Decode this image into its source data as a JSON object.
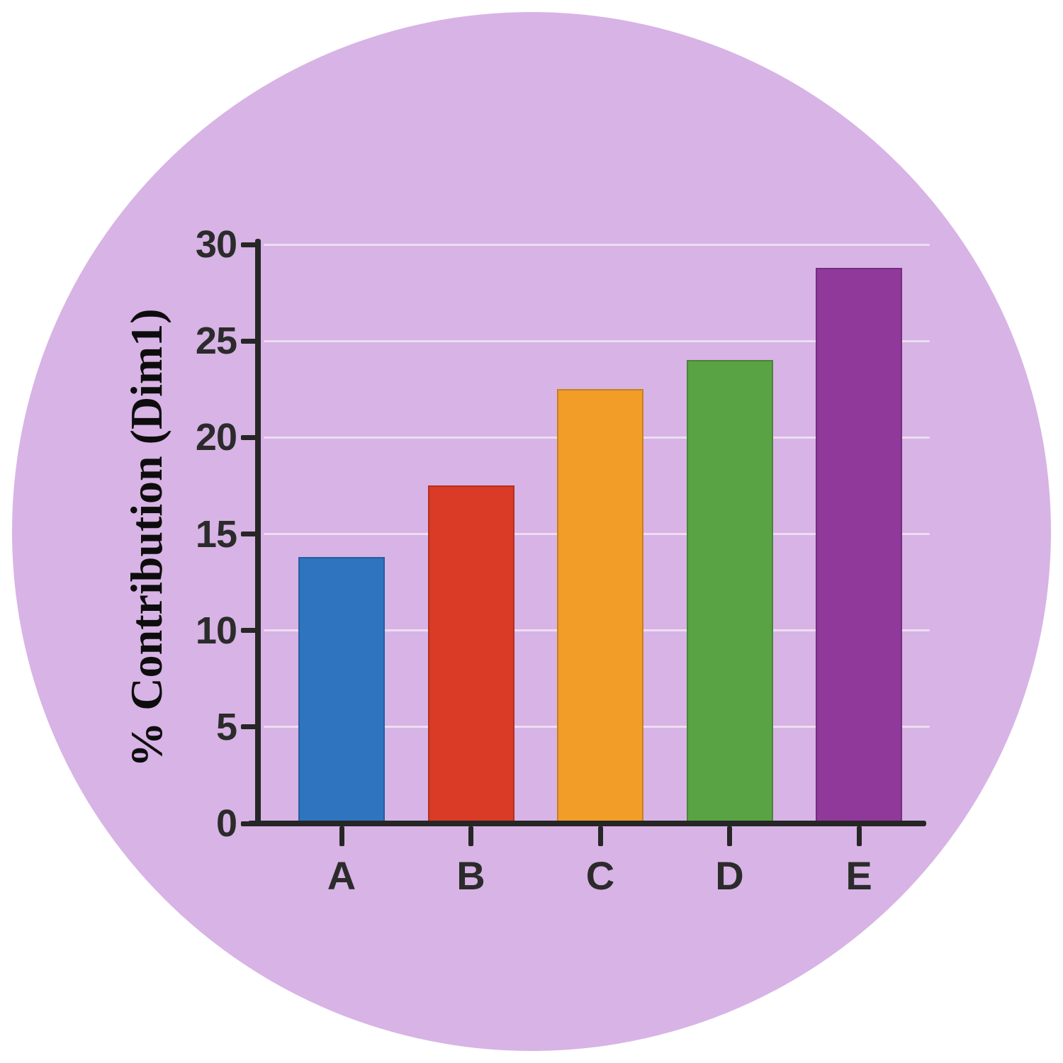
{
  "figure": {
    "background_color": "#ffffff",
    "circle_color": "#d8b3e5",
    "axis_color": "#262626",
    "text_color": "#2b2b2b",
    "gridline_color": "rgba(255,255,255,0.55)"
  },
  "chart_data": {
    "type": "bar",
    "categories": [
      "A",
      "B",
      "C",
      "D",
      "E"
    ],
    "values": [
      13.8,
      17.5,
      22.5,
      24.0,
      28.8
    ],
    "bar_colors": [
      "#2e74bf",
      "#d93b27",
      "#f29d28",
      "#59a344",
      "#90399b"
    ],
    "title": "",
    "xlabel": "",
    "ylabel": "% Contribution (Dim1)",
    "ylim": [
      0,
      30
    ],
    "yticks": [
      0,
      5,
      10,
      15,
      20,
      25,
      30
    ],
    "grid": "horizontal-faint",
    "legend": "none"
  }
}
